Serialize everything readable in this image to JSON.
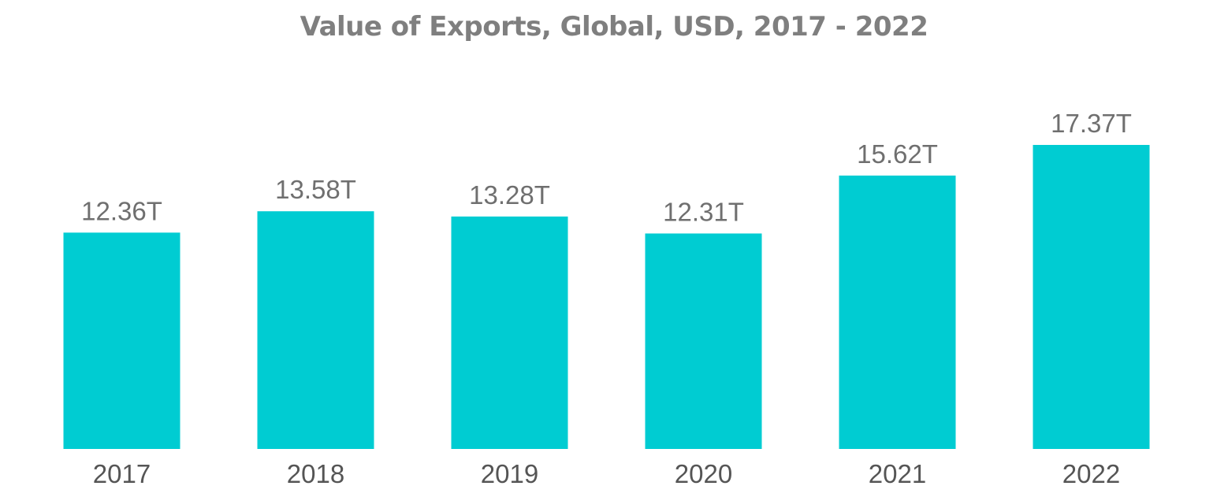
{
  "chart_data": {
    "type": "bar",
    "title": "Value of Exports, Global, USD, 2017 - 2022",
    "categories": [
      "2017",
      "2018",
      "2019",
      "2020",
      "2021",
      "2022"
    ],
    "values": [
      12.36,
      13.58,
      13.28,
      12.31,
      15.62,
      17.37
    ],
    "data_labels": [
      "12.36T",
      "13.58T",
      "13.28T",
      "12.31T",
      "15.62T",
      "17.37T"
    ],
    "xlabel": "",
    "ylabel": "",
    "ylim": [
      0,
      17.37
    ],
    "grid": false,
    "legend": "none",
    "bar_color": "#00ccd2"
  }
}
